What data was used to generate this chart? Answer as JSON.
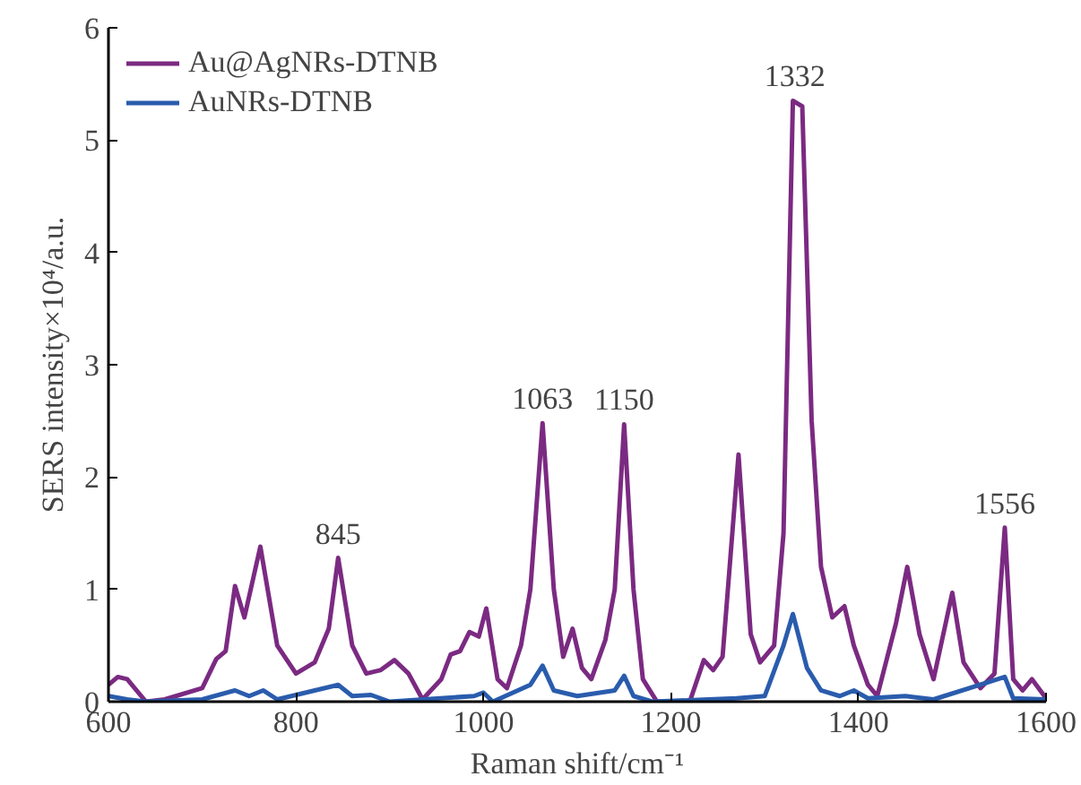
{
  "chart_data": {
    "type": "line",
    "xlabel": "Raman shift/cm⁻¹",
    "ylabel": "SERS intensity×10⁴/a.u.",
    "xlim": [
      600,
      1600
    ],
    "ylim": [
      0,
      6
    ],
    "xticks": [
      600,
      800,
      1000,
      1200,
      1400,
      1600
    ],
    "yticks": [
      0,
      1,
      2,
      3,
      4,
      5,
      6
    ],
    "grid": false,
    "legend": "top left",
    "line_style": "solid",
    "marker": "none",
    "annotations": [
      {
        "text": "845",
        "x": 845,
        "y": 1.28
      },
      {
        "text": "1063",
        "x": 1063,
        "y": 2.48
      },
      {
        "text": "1150",
        "x": 1150,
        "y": 2.47
      },
      {
        "text": "1332",
        "x": 1332,
        "y": 5.35
      },
      {
        "text": "1556",
        "x": 1556,
        "y": 1.55
      }
    ],
    "series": [
      {
        "name": "Au@AgNRs-DTNB",
        "color": "#7b2a82",
        "x": [
          600,
          610,
          620,
          640,
          660,
          700,
          715,
          725,
          735,
          745,
          762,
          780,
          800,
          820,
          835,
          845,
          860,
          875,
          890,
          905,
          920,
          935,
          955,
          965,
          975,
          985,
          995,
          1003,
          1015,
          1025,
          1040,
          1050,
          1063,
          1075,
          1085,
          1095,
          1105,
          1115,
          1130,
          1140,
          1150,
          1160,
          1170,
          1185,
          1220,
          1235,
          1245,
          1255,
          1272,
          1285,
          1295,
          1310,
          1320,
          1330,
          1340,
          1350,
          1360,
          1372,
          1385,
          1395,
          1410,
          1420,
          1440,
          1452,
          1465,
          1480,
          1500,
          1512,
          1530,
          1545,
          1556,
          1565,
          1575,
          1585,
          1600
        ],
        "values": [
          0.15,
          0.22,
          0.2,
          0.0,
          0.02,
          0.12,
          0.38,
          0.45,
          1.03,
          0.75,
          1.38,
          0.5,
          0.25,
          0.35,
          0.65,
          1.28,
          0.5,
          0.25,
          0.28,
          0.37,
          0.25,
          0.02,
          0.2,
          0.42,
          0.45,
          0.62,
          0.58,
          0.83,
          0.2,
          0.12,
          0.5,
          1.0,
          2.48,
          1.0,
          0.4,
          0.65,
          0.3,
          0.2,
          0.55,
          1.0,
          2.47,
          1.0,
          0.2,
          0.0,
          0.0,
          0.37,
          0.28,
          0.4,
          2.2,
          0.6,
          0.35,
          0.5,
          1.5,
          5.35,
          5.3,
          2.5,
          1.2,
          0.75,
          0.85,
          0.5,
          0.15,
          0.05,
          0.7,
          1.2,
          0.6,
          0.2,
          0.97,
          0.35,
          0.12,
          0.25,
          1.55,
          0.2,
          0.1,
          0.2,
          0.03
        ]
      },
      {
        "name": "AuNRs-DTNB",
        "color": "#2a5cad",
        "x": [
          600,
          620,
          640,
          700,
          735,
          750,
          765,
          780,
          845,
          860,
          880,
          900,
          990,
          1000,
          1010,
          1050,
          1063,
          1075,
          1100,
          1140,
          1150,
          1160,
          1180,
          1240,
          1270,
          1300,
          1320,
          1330,
          1345,
          1360,
          1380,
          1395,
          1410,
          1450,
          1480,
          1556,
          1565,
          1600
        ],
        "values": [
          0.05,
          0.02,
          0.0,
          0.02,
          0.1,
          0.05,
          0.1,
          0.02,
          0.15,
          0.05,
          0.06,
          0.0,
          0.05,
          0.08,
          0.0,
          0.15,
          0.32,
          0.1,
          0.05,
          0.1,
          0.23,
          0.05,
          0.0,
          0.02,
          0.03,
          0.05,
          0.5,
          0.78,
          0.3,
          0.1,
          0.05,
          0.1,
          0.03,
          0.05,
          0.02,
          0.22,
          0.03,
          0.02
        ]
      }
    ]
  }
}
